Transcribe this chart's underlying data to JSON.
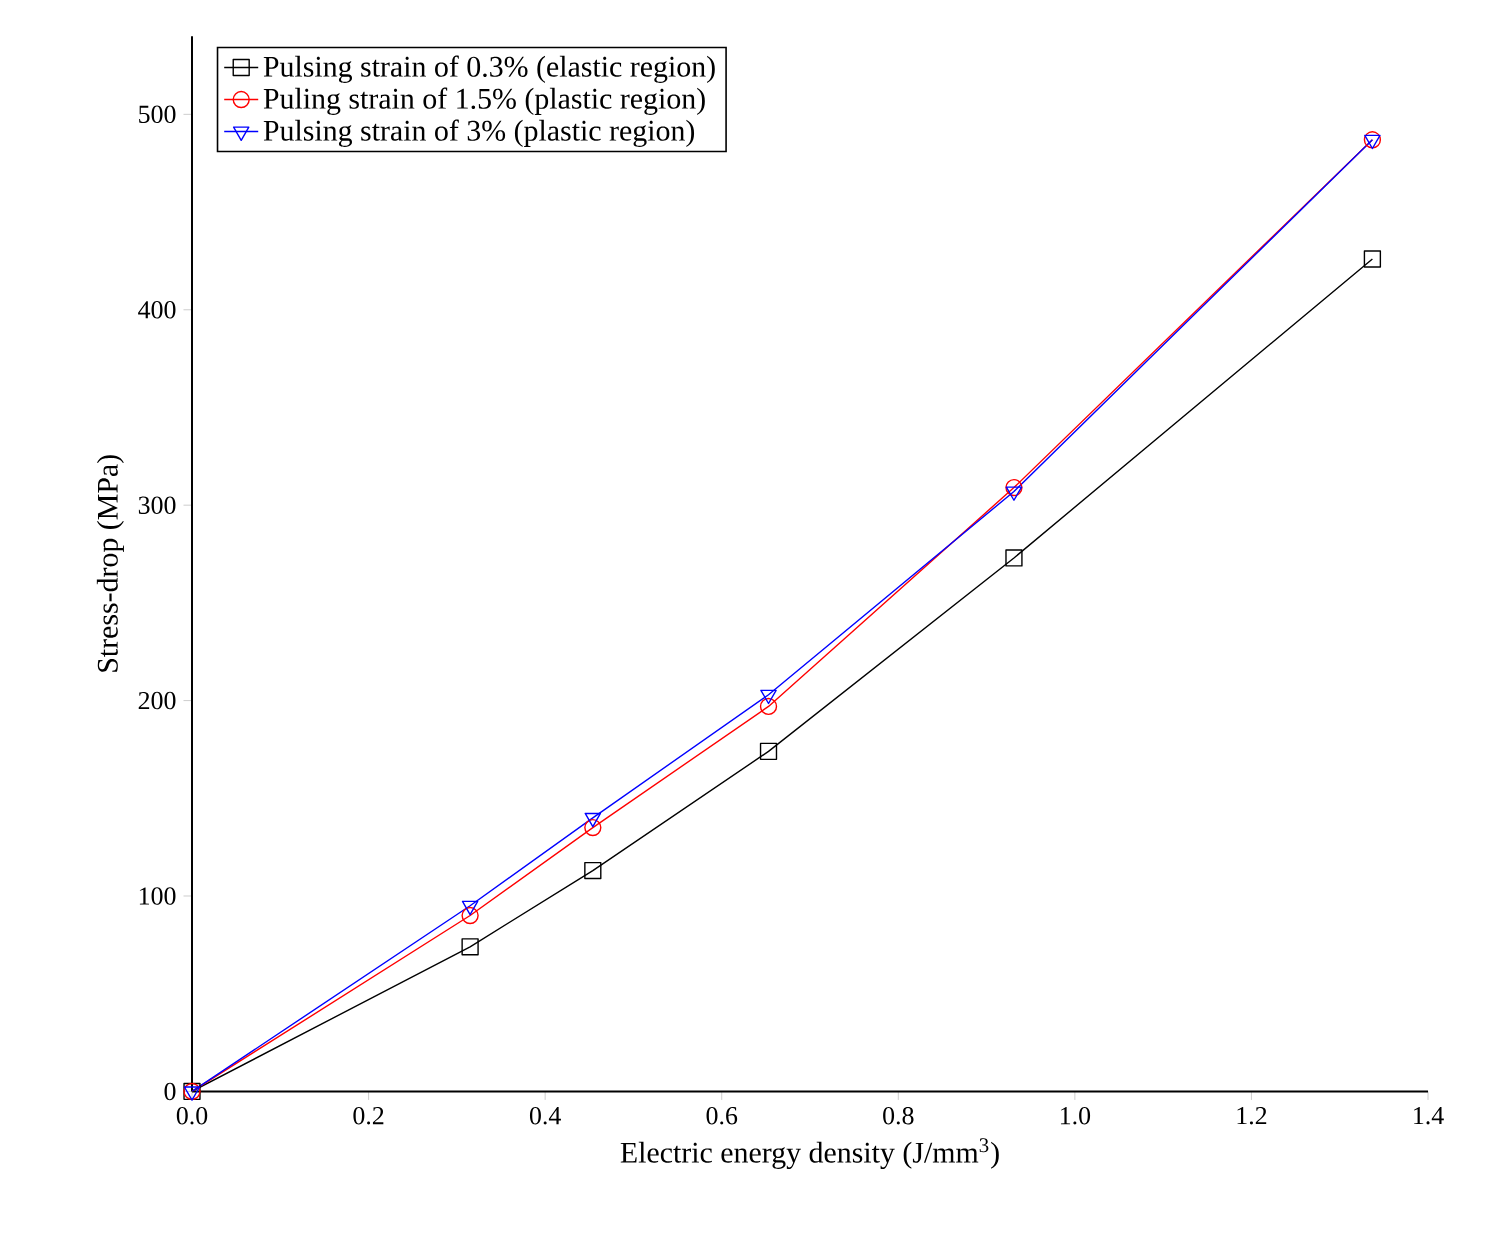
{
  "chart_data": {
    "type": "line",
    "xlabel": "Electric energy density (J/mm$^{3}$)",
    "ylabel": "Stress-drop (MPa)",
    "x": [
      0,
      0.315,
      0.454,
      0.653,
      0.931,
      1.337
    ],
    "series": [
      {
        "name": "Pulsing strain of 0.3% (elastic region)",
        "color": "#000000",
        "marker": "square",
        "values": [
          0,
          74,
          113,
          174,
          273,
          426
        ]
      },
      {
        "name": "Puling strain of 1.5% (plastic region)",
        "color": "#ff0000",
        "marker": "circle",
        "values": [
          0,
          90,
          135,
          197,
          309,
          487
        ]
      },
      {
        "name": "Pulsing strain of 3% (plastic region)",
        "color": "#0000ff",
        "marker": "triangle",
        "values": [
          0,
          95,
          140,
          203,
          307,
          487
        ]
      }
    ],
    "xlim": [
      0,
      1.4
    ],
    "ylim": [
      0,
      540
    ],
    "xticks": [
      {
        "value": 0,
        "label": "0.0"
      },
      {
        "value": 0.2,
        "label": "0.2"
      },
      {
        "value": 0.4,
        "label": "0.4"
      },
      {
        "value": 0.6,
        "label": "0.6"
      },
      {
        "value": 0.8,
        "label": "0.8"
      },
      {
        "value": 1.0,
        "label": "1.0"
      },
      {
        "value": 1.2,
        "label": "1.2"
      },
      {
        "value": 1.4,
        "label": "1.4"
      }
    ],
    "yticks": [
      0,
      100,
      200,
      300,
      400,
      500
    ],
    "grid": false,
    "legend": "top left",
    "line_style": "solid"
  }
}
